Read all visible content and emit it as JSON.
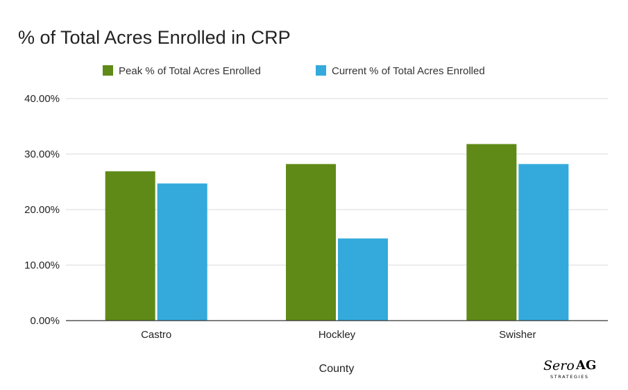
{
  "chart_data": {
    "type": "bar",
    "title": "% of Total Acres Enrolled in CRP",
    "categories": [
      "Castro",
      "Hockley",
      "Swisher"
    ],
    "series": [
      {
        "name": "Peak % of Total Acres Enrolled",
        "color": "#5f8a17",
        "values": [
          26.9,
          28.2,
          31.8
        ]
      },
      {
        "name": "Current % of Total Acres Enrolled",
        "color": "#33aadb",
        "values": [
          24.7,
          14.8,
          28.2
        ]
      }
    ],
    "xlabel": "County",
    "ylabel": "",
    "ylim": [
      0,
      40
    ],
    "yticks": [
      "0.00%",
      "10.00%",
      "20.00%",
      "30.00%",
      "40.00%"
    ],
    "grid": true,
    "legend": "top"
  },
  "logo": {
    "script": "Sero",
    "brand": "AG",
    "subtitle": "STRATEGIES"
  }
}
